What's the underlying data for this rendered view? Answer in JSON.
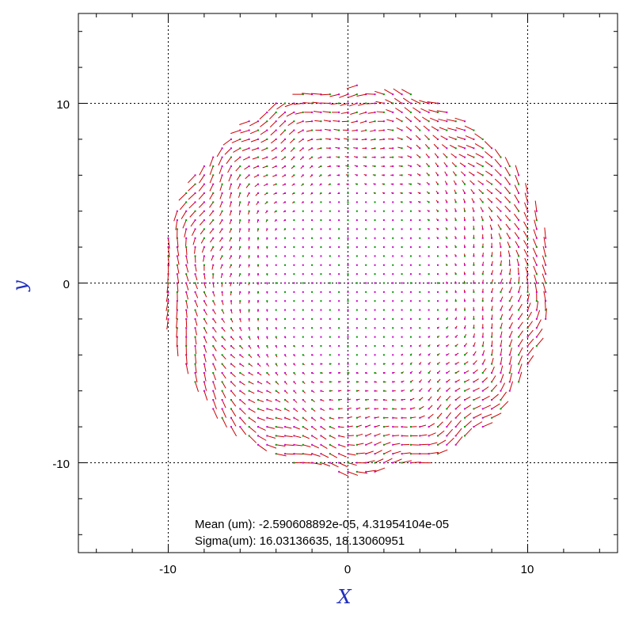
{
  "chart_data": {
    "type": "vector_field",
    "xlabel": "X",
    "ylabel": "y",
    "xlim": [
      -15,
      15
    ],
    "ylim": [
      -15,
      15
    ],
    "xticks": [
      -10,
      0,
      10
    ],
    "yticks": [
      -10,
      0,
      10
    ],
    "grid": true,
    "field_extent": {
      "x_min": -10.4,
      "x_max": 11.4,
      "y_min": -10.6,
      "y_max": 11.0,
      "grid_step": 0.5
    },
    "annotations": {
      "mean": "Mean (um): -2.590608892e-05, 4.31954104e-05",
      "sigma": "Sigma(um): 16.03136635, 18.13060951"
    },
    "colors": {
      "vector": "#cc0000",
      "marker_a": "#cc00cc",
      "marker_b": "#009900",
      "axis_title": "#1f2fbf",
      "grid": "#000000"
    }
  }
}
